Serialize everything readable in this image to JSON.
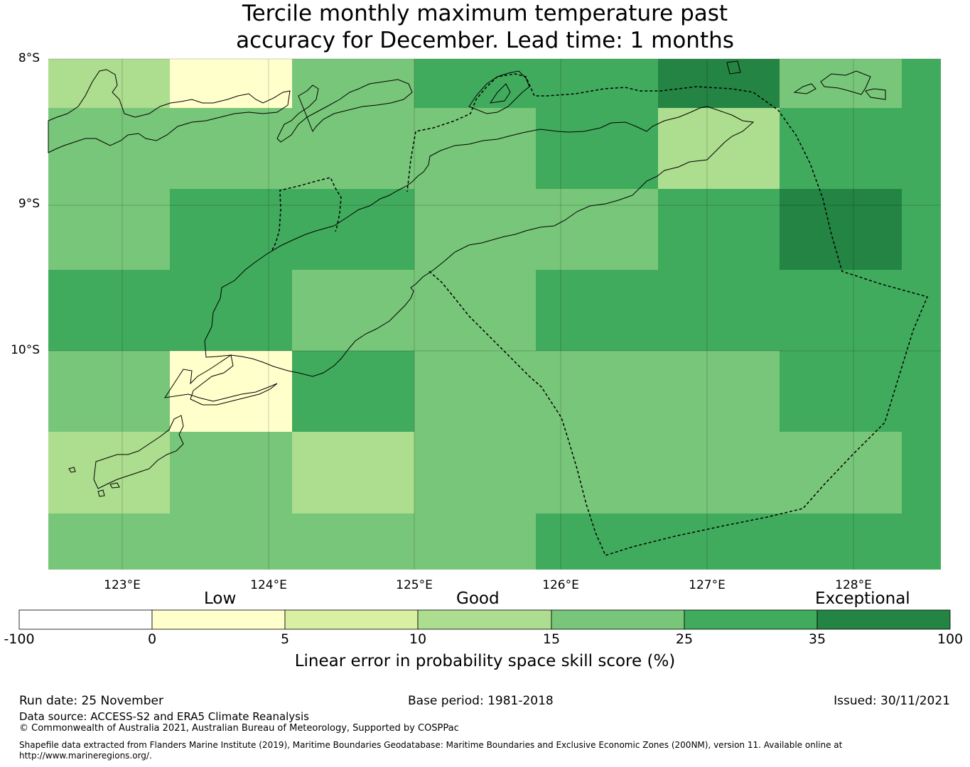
{
  "title": {
    "line1": "Tercile monthly maximum temperature past",
    "line2": "accuracy for December. Lead time: 1 months"
  },
  "map": {
    "lat_labels": [
      "8°S",
      "9°S",
      "10°S"
    ],
    "lon_labels": [
      "123°E",
      "124°E",
      "125°E",
      "126°E",
      "127°E",
      "128°E"
    ],
    "extent": {
      "lon_min": 122.5,
      "lon_max": 128.6,
      "lat_min": -11.5,
      "lat_max": -8.0
    },
    "cell_size_deg": [
      0.833,
      0.556
    ],
    "cell_categories": [
      [
        3,
        1,
        4,
        5,
        5,
        6,
        4,
        5
      ],
      [
        4,
        4,
        4,
        4,
        5,
        3,
        5,
        5
      ],
      [
        4,
        5,
        5,
        4,
        4,
        5,
        6,
        5
      ],
      [
        5,
        5,
        4,
        4,
        5,
        5,
        5,
        5
      ],
      [
        4,
        1,
        5,
        4,
        4,
        4,
        5,
        5
      ],
      [
        3,
        4,
        3,
        4,
        4,
        4,
        4,
        5
      ],
      [
        4,
        4,
        4,
        4,
        5,
        5,
        5,
        5
      ]
    ]
  },
  "colorbar": {
    "boundaries": [
      "-100",
      "0",
      "5",
      "10",
      "15",
      "25",
      "35",
      "100"
    ],
    "colors": [
      "#ffffff",
      "#ffffcc",
      "#d9f0a3",
      "#addd8e",
      "#78c679",
      "#41ab5d",
      "#238443"
    ],
    "categories": [
      "Low",
      "Good",
      "Exceptional"
    ],
    "label": "Linear error in probability space skill score (%)"
  },
  "footer": {
    "run_date": "Run date: 25 November",
    "base_period": "Base period: 1981-2018",
    "issued": "Issued: 30/11/2021",
    "data_source": "Data source: ACCESS-S2 and ERA5 Climate Reanalysis",
    "copyright": "© Commonwealth of Australia 2021, Australian Bureau of Meteorology, Supported by COSPPac",
    "shapefile_line1": "Shapefile data extracted from Flanders Marine Institute (2019), Maritime Boundaries Geodatabase: Maritime Boundaries and Exclusive Economic Zones (200NM), version 11. Available online at",
    "shapefile_line2": "http://www.marineregions.org/."
  }
}
